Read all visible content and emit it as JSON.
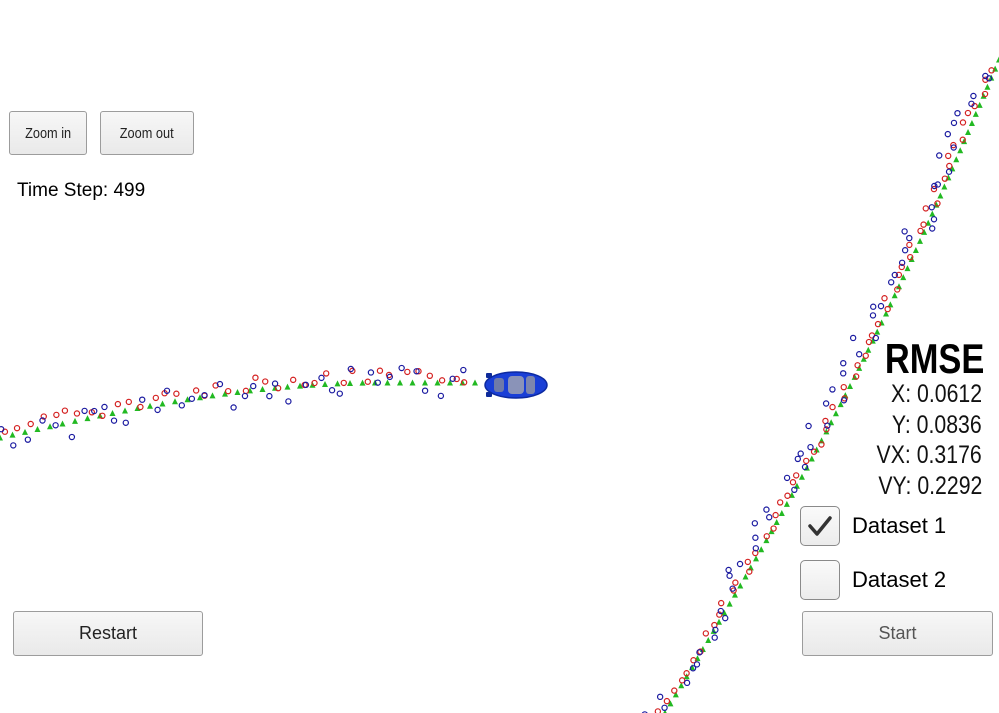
{
  "toolbar": {
    "zoom_in": "Zoom in",
    "zoom_out": "Zoom out"
  },
  "status": {
    "time_step": "Time Step: 499"
  },
  "rmse": {
    "title": "RMSE",
    "x": "X: 0.0612",
    "y": "Y: 0.0836",
    "vx": "VX: 0.3176",
    "vy": "VY: 0.2292"
  },
  "datasets": [
    {
      "label": "Dataset 1",
      "checked": true
    },
    {
      "label": "Dataset 2",
      "checked": false
    }
  ],
  "controls": {
    "restart": "Restart",
    "start": "Start"
  },
  "colors": {
    "ground_truth": "#22b922",
    "lidar": "#d42020",
    "radar": "#1a1aa0",
    "car": "#1a3fd6"
  },
  "legend_icons": {
    "ground_truth": "green-triangle",
    "lidar": "red-circle",
    "radar": "blue-circle-with-arrow"
  }
}
